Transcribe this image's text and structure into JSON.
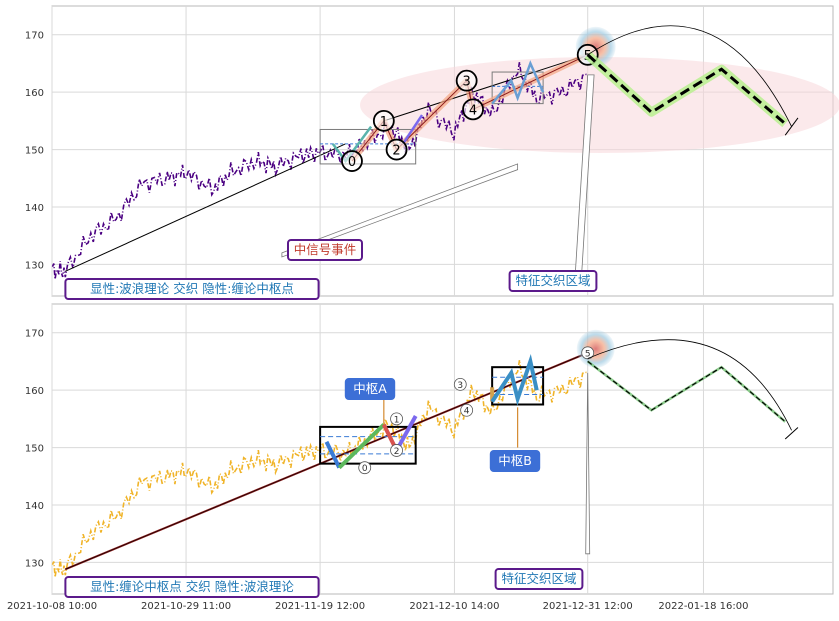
{
  "colors": {
    "background": "#ffffff",
    "grid": "#d9d9d9",
    "frame": "#b8b8b8",
    "price_top": "#4b0082",
    "price_bottom": "#f0b429",
    "trend_line": "#000000",
    "trend_line_red": "#8b1a1a",
    "wave_highlight": "#f4a582",
    "pivot_box": "#000000",
    "pivot_mid": "#3a7bd5",
    "projection_green": "#b5f08a",
    "label_box_border": "#5b1a8b",
    "label_text": "#1f77b4",
    "signal_text": "#c0392b",
    "callout_fill": "#3c6fd6",
    "ellipse_fill": "#f8d7da",
    "circle_glow": "#9ecae1"
  },
  "chart_data": [
    {
      "type": "line",
      "panel": "top",
      "title": "",
      "xlabel": "",
      "ylabel": "",
      "ylim": [
        124.5,
        175
      ],
      "yticks": [
        130,
        140,
        150,
        160,
        170
      ],
      "grid": true,
      "series": [
        {
          "name": "",
          "style": "dashdot",
          "x": [
            "2021-10-08",
            "2021-10-10",
            "2021-10-14",
            "2021-10-18",
            "2021-10-22",
            "2021-10-26",
            "2021-10-29",
            "2021-11-02",
            "2021-11-05",
            "2021-11-09",
            "2021-11-12",
            "2021-11-16",
            "2021-11-19",
            "2021-11-23",
            "2021-11-26",
            "2021-11-30",
            "2021-12-03",
            "2021-12-06",
            "2021-12-10",
            "2021-12-13",
            "2021-12-16",
            "2021-12-20",
            "2021-12-23",
            "2021-12-27",
            "2021-12-31"
          ],
          "values": [
            129.0,
            128.8,
            135,
            138,
            144,
            145,
            146,
            143,
            146,
            148,
            147,
            149,
            149.5,
            149,
            151,
            154,
            150,
            157,
            153,
            160,
            156,
            164,
            159,
            160,
            163
          ]
        }
      ],
      "wave_points": [
        {
          "label": "0",
          "x": "2021-11-24",
          "y": 148
        },
        {
          "label": "1",
          "x": "2021-11-29",
          "y": 155
        },
        {
          "label": "2",
          "x": "2021-12-01",
          "y": 150
        },
        {
          "label": "3",
          "x": "2021-12-12",
          "y": 162
        },
        {
          "label": "4",
          "x": "2021-12-13",
          "y": 157
        },
        {
          "label": "5",
          "x": "2021-12-31",
          "y": 166.5
        }
      ],
      "projection": {
        "x": [
          "2021-12-31",
          "2022-01-10",
          "2022-01-21",
          "2022-01-31"
        ],
        "values": [
          166.5,
          156.5,
          164,
          154.5
        ]
      },
      "annotations": [
        "显性:波浪理论 交织 隐性:缠论中枢点",
        "中信号事件",
        "特征交织区域"
      ]
    },
    {
      "type": "line",
      "panel": "bottom",
      "title": "",
      "xlabel": "",
      "ylabel": "",
      "ylim": [
        124.5,
        175
      ],
      "yticks": [
        130,
        140,
        150,
        160,
        170
      ],
      "grid": true,
      "x_ticks": [
        "2021-10-08 10:00",
        "2021-10-29 11:00",
        "2021-11-19 12:00",
        "2021-12-10 14:00",
        "2021-12-31 12:00",
        "2022-01-18 16:00"
      ],
      "series": [
        {
          "name": "",
          "style": "dashdot",
          "x": [
            "2021-10-08",
            "2021-10-10",
            "2021-10-14",
            "2021-10-18",
            "2021-10-22",
            "2021-10-26",
            "2021-10-29",
            "2021-11-02",
            "2021-11-05",
            "2021-11-09",
            "2021-11-12",
            "2021-11-16",
            "2021-11-19",
            "2021-11-23",
            "2021-11-26",
            "2021-11-30",
            "2021-12-03",
            "2021-12-06",
            "2021-12-10",
            "2021-12-13",
            "2021-12-16",
            "2021-12-20",
            "2021-12-23",
            "2021-12-27",
            "2021-12-31"
          ],
          "values": [
            129.0,
            128.8,
            135,
            138,
            144,
            145,
            146,
            143,
            146,
            148,
            147,
            149,
            149.5,
            149,
            151,
            154,
            150,
            157,
            153,
            160,
            156,
            164,
            159,
            160,
            163
          ]
        }
      ],
      "wave_points": [
        {
          "label": "0",
          "x": "2021-11-26",
          "y": 146.5
        },
        {
          "label": "1",
          "x": "2021-12-01",
          "y": 155
        },
        {
          "label": "2",
          "x": "2021-12-01",
          "y": 149.5
        },
        {
          "label": "3",
          "x": "2021-12-11",
          "y": 161
        },
        {
          "label": "4",
          "x": "2021-12-12",
          "y": 156.5
        },
        {
          "label": "5",
          "x": "2021-12-31",
          "y": 166.5
        }
      ],
      "pivots": [
        {
          "label": "中枢A",
          "x_start": "2021-11-19",
          "x_end": "2021-12-04",
          "low": 147.2,
          "high": 153.6
        },
        {
          "label": "中枢B",
          "x_start": "2021-12-16",
          "x_end": "2021-12-24",
          "low": 157.5,
          "high": 164
        }
      ],
      "projection": {
        "x": [
          "2021-12-31",
          "2022-01-10",
          "2022-01-21",
          "2022-01-31"
        ],
        "values": [
          165,
          156.5,
          164,
          154.5
        ]
      },
      "annotations": [
        "显性:缠论中枢点 交织 隐性:波浪理论",
        "中枢A",
        "中枢B",
        "特征交织区域"
      ]
    }
  ],
  "labels": {
    "top_caption": "显性:波浪理论 交织 隐性:缠论中枢点",
    "signal_event": "中信号事件",
    "zone_top": "特征交织区域",
    "bottom_caption": "显性:缠论中枢点 交织 隐性:波浪理论",
    "pivot_a": "中枢A",
    "pivot_b": "中枢B",
    "zone_bottom": "特征交织区域"
  }
}
